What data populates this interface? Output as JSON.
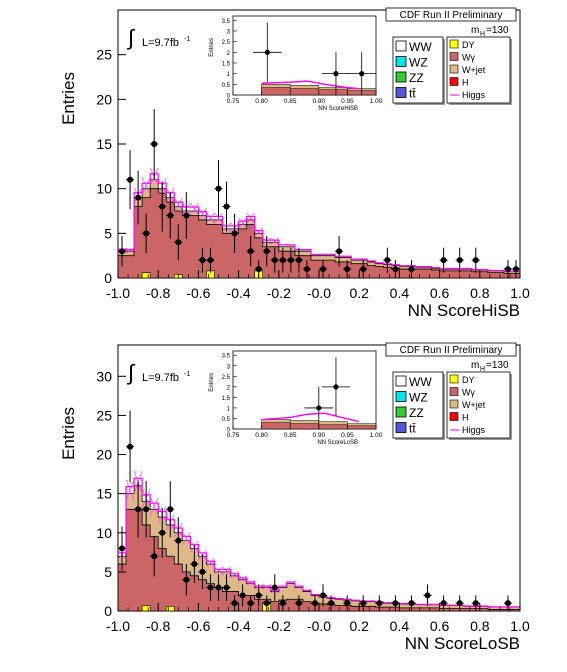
{
  "chart_data": [
    {
      "type": "histogram",
      "xlabel": "NN ScoreHiSB",
      "ylabel": "Entries",
      "xlim": [
        -1.0,
        1.0
      ],
      "ylim": [
        0,
        30
      ],
      "x_ticks": [
        "-1.0",
        "-0.8",
        "-0.6",
        "-0.4",
        "-0.2",
        "-0.0",
        "0.2",
        "0.4",
        "0.6",
        "0.8",
        "1.0"
      ],
      "y_ticks": [
        "0",
        "5",
        "10",
        "15",
        "20",
        "25"
      ],
      "y_tick_values": [
        0,
        5,
        10,
        15,
        20,
        25
      ],
      "bin_edges_start": -1.0,
      "bin_width": 0.04,
      "lumi_label": "L=9.7fb",
      "lumi_exp": "-1",
      "integral_symbol": "∫",
      "header": "CDF Run II Preliminary",
      "mass_label": "m",
      "mass_sub": "H",
      "mass_value": "=130",
      "legend_left": [
        {
          "label": "WW",
          "color": "#ffffff"
        },
        {
          "label": "WZ",
          "color": "#00e5e5"
        },
        {
          "label": "ZZ",
          "color": "#33cc33"
        },
        {
          "label": "tt̄",
          "color": "#5555dd"
        }
      ],
      "legend_right": [
        {
          "label": "DY",
          "color": "#ffff00",
          "style": "box"
        },
        {
          "label": "Wγ",
          "color": "#cc6666",
          "style": "box"
        },
        {
          "label": "W+jet",
          "color": "#deb887",
          "style": "box"
        },
        {
          "label": "H",
          "color": "#ff0000",
          "style": "box"
        },
        {
          "label": "Higgs",
          "color": "#ff00ff",
          "style": "line"
        }
      ],
      "stack_top": [
        3,
        3,
        9,
        10,
        11,
        10,
        9,
        8,
        7.5,
        7.5,
        7,
        6.5,
        6.5,
        5.5,
        5.5,
        6,
        6.5,
        5,
        4,
        4,
        3.5,
        3.5,
        3,
        3,
        2.5,
        2.5,
        2.5,
        2.3,
        2.3,
        2,
        2,
        1.8,
        1.6,
        1.5,
        1.4,
        1.3,
        1.3,
        1.2,
        1.2,
        1.1,
        1.0,
        1.0,
        1.0,
        1.0,
        0.9,
        0.9,
        0.8,
        0.8,
        0.7,
        0.7
      ],
      "wgamma": [
        2.5,
        2.5,
        8,
        9,
        10,
        9.5,
        8.5,
        7.5,
        7,
        7,
        6.5,
        6,
        6,
        5,
        5,
        5.5,
        6,
        4.5,
        3.5,
        3.5,
        3,
        3,
        2.5,
        2.5,
        2,
        2,
        2,
        1.8,
        1.8,
        1.6,
        1.6,
        1.4,
        1.3,
        1.2,
        1.1,
        1.0,
        1.0,
        1.0,
        1.0,
        0.9,
        0.8,
        0.8,
        0.8,
        0.8,
        0.7,
        0.7,
        0.6,
        0.6,
        0.5,
        0.5
      ],
      "dy": [
        0,
        0,
        0,
        0,
        0,
        0,
        0,
        0,
        0,
        0,
        0,
        0,
        0,
        0,
        0,
        0,
        0,
        0,
        0,
        0,
        0,
        0,
        0,
        0,
        0,
        0,
        0,
        0,
        0,
        0,
        0,
        0,
        0,
        0,
        0,
        0,
        0,
        0,
        0,
        0,
        0,
        0,
        0,
        0,
        0,
        0,
        0,
        0,
        0,
        0
      ],
      "data_points": [
        {
          "x": -0.98,
          "y": 3,
          "err": 1.7
        },
        {
          "x": -0.94,
          "y": 11,
          "err": 3.3
        },
        {
          "x": -0.9,
          "y": 9,
          "err": 3.0
        },
        {
          "x": -0.86,
          "y": 5,
          "err": 2.2
        },
        {
          "x": -0.82,
          "y": 15,
          "err": 3.9
        },
        {
          "x": -0.78,
          "y": 8,
          "err": 2.8
        },
        {
          "x": -0.74,
          "y": 7,
          "err": 2.6
        },
        {
          "x": -0.7,
          "y": 4,
          "err": 2.0
        },
        {
          "x": -0.66,
          "y": 7,
          "err": 2.6
        },
        {
          "x": -0.58,
          "y": 2,
          "err": 1.4
        },
        {
          "x": -0.54,
          "y": 2,
          "err": 1.4
        },
        {
          "x": -0.5,
          "y": 10,
          "err": 3.2
        },
        {
          "x": -0.46,
          "y": 8,
          "err": 2.8
        },
        {
          "x": -0.42,
          "y": 5,
          "err": 2.2
        },
        {
          "x": -0.34,
          "y": 3,
          "err": 1.7
        },
        {
          "x": -0.3,
          "y": 1,
          "err": 1.0
        },
        {
          "x": -0.26,
          "y": 3,
          "err": 1.7
        },
        {
          "x": -0.22,
          "y": 2,
          "err": 1.4
        },
        {
          "x": -0.18,
          "y": 2,
          "err": 1.4
        },
        {
          "x": -0.14,
          "y": 2,
          "err": 1.4
        },
        {
          "x": -0.1,
          "y": 2,
          "err": 1.4
        },
        {
          "x": -0.06,
          "y": 1,
          "err": 1.0
        },
        {
          "x": 0.02,
          "y": 1,
          "err": 1.0
        },
        {
          "x": 0.1,
          "y": 3,
          "err": 1.7
        },
        {
          "x": 0.14,
          "y": 1,
          "err": 1.0
        },
        {
          "x": 0.22,
          "y": 1,
          "err": 1.0
        },
        {
          "x": 0.34,
          "y": 2,
          "err": 1.4
        },
        {
          "x": 0.38,
          "y": 1,
          "err": 1.0
        },
        {
          "x": 0.46,
          "y": 1,
          "err": 1.0
        },
        {
          "x": 0.62,
          "y": 2,
          "err": 1.4
        },
        {
          "x": 0.7,
          "y": 2,
          "err": 1.4
        },
        {
          "x": 0.78,
          "y": 2,
          "err": 1.4
        },
        {
          "x": 0.94,
          "y": 1,
          "err": 1.0
        },
        {
          "x": 0.98,
          "y": 1,
          "err": 1.0
        }
      ],
      "yellow_bins": [
        {
          "x": -0.86,
          "h": 0.6
        },
        {
          "x": -0.7,
          "h": 0.4
        },
        {
          "x": -0.54,
          "h": 0.8
        },
        {
          "x": -0.3,
          "h": 0.8
        }
      ],
      "inset": {
        "xlabel": "NN ScoreHiSB",
        "ylabel": "Entries",
        "xlim": [
          0.75,
          1.0
        ],
        "ylim": [
          0,
          3.7
        ],
        "x_ticks": [
          "0.75",
          "0.80",
          "0.85",
          "0.90",
          "0.95",
          "1.00"
        ],
        "y_ticks": [
          "0",
          "0.5",
          "1",
          "1.5",
          "2",
          "2.5",
          "3",
          "3.5"
        ],
        "y_tick_values": [
          0,
          0.5,
          1,
          1.5,
          2,
          2.5,
          3,
          3.5
        ],
        "bins": [
          {
            "x0": 0.8,
            "x1": 0.85,
            "stack": 0.5,
            "wg": 0.35
          },
          {
            "x0": 0.85,
            "x1": 0.9,
            "stack": 0.45,
            "wg": 0.3
          },
          {
            "x0": 0.9,
            "x1": 0.95,
            "stack": 0.35,
            "wg": 0.25
          },
          {
            "x0": 0.95,
            "x1": 1.0,
            "stack": 0.3,
            "wg": 0.2
          }
        ],
        "higgs": [
          [
            0.8,
            0.55
          ],
          [
            0.85,
            0.6
          ],
          [
            0.88,
            0.65
          ],
          [
            0.91,
            0.5
          ],
          [
            0.95,
            0.35
          ],
          [
            0.97,
            0.3
          ]
        ],
        "data_points": [
          {
            "x": 0.81,
            "y": 2,
            "err": 1.4
          },
          {
            "x": 0.93,
            "y": 1,
            "err": 1.0
          },
          {
            "x": 0.975,
            "y": 1,
            "err": 1.0
          }
        ]
      }
    },
    {
      "type": "histogram",
      "xlabel": "NN ScoreLoSB",
      "ylabel": "Entries",
      "xlim": [
        -1.0,
        1.0
      ],
      "ylim": [
        0,
        34
      ],
      "x_ticks": [
        "-1.0",
        "-0.8",
        "-0.6",
        "-0.4",
        "-0.2",
        "-0.0",
        "0.2",
        "0.4",
        "0.6",
        "0.8",
        "1.0"
      ],
      "y_ticks": [
        "0",
        "5",
        "10",
        "15",
        "20",
        "25",
        "30"
      ],
      "y_tick_values": [
        0,
        5,
        10,
        15,
        20,
        25,
        30
      ],
      "bin_edges_start": -1.0,
      "bin_width": 0.04,
      "lumi_label": "L=9.7fb",
      "lumi_exp": "-1",
      "integral_symbol": "∫",
      "header": "CDF Run II Preliminary",
      "mass_label": "m",
      "mass_sub": "H",
      "mass_value": "=130",
      "legend_left": [
        {
          "label": "WW",
          "color": "#ffffff"
        },
        {
          "label": "WZ",
          "color": "#00e5e5"
        },
        {
          "label": "ZZ",
          "color": "#33cc33"
        },
        {
          "label": "tt̄",
          "color": "#5555dd"
        }
      ],
      "legend_right": [
        {
          "label": "DY",
          "color": "#ffff00",
          "style": "box"
        },
        {
          "label": "Wγ",
          "color": "#cc6666",
          "style": "box"
        },
        {
          "label": "W+jet",
          "color": "#deb887",
          "style": "box"
        },
        {
          "label": "H",
          "color": "#ff0000",
          "style": "box"
        },
        {
          "label": "Higgs",
          "color": "#ff00ff",
          "style": "line"
        }
      ],
      "stack_top": [
        7,
        15,
        16,
        14,
        13,
        12,
        11,
        10,
        9,
        8,
        7,
        6,
        5,
        5,
        4.5,
        4,
        3.5,
        3,
        3,
        2.5,
        3,
        3.5,
        3,
        2.5,
        2,
        1.8,
        1.6,
        1.5,
        1.4,
        1.3,
        1.2,
        1.2,
        1.1,
        1.0,
        1.0,
        0.9,
        0.9,
        0.8,
        0.8,
        0.8,
        0.7,
        0.7,
        0.7,
        0.6,
        0.6,
        0.6,
        0.5,
        0.5,
        0.5,
        0.5
      ],
      "wgamma": [
        6,
        13,
        13,
        11,
        9.5,
        8,
        7,
        6,
        5,
        4.5,
        4,
        3.5,
        3,
        2.5,
        2.5,
        2,
        2,
        1.5,
        1.5,
        1.2,
        1.4,
        1.5,
        1.5,
        1.2,
        1.0,
        0.9,
        0.8,
        0.7,
        0.7,
        0.6,
        0.6,
        0.6,
        0.5,
        0.5,
        0.5,
        0.4,
        0.4,
        0.4,
        0.4,
        0.4,
        0.3,
        0.3,
        0.3,
        0.3,
        0.3,
        0.3,
        0.2,
        0.2,
        0.2,
        0.2
      ],
      "dy": [
        0,
        0,
        0,
        0,
        0,
        0,
        0,
        0,
        0,
        0,
        0,
        0,
        0,
        0,
        0,
        0,
        0,
        0,
        0,
        0,
        0,
        0,
        0,
        0,
        0,
        0,
        0,
        0,
        0,
        0,
        0,
        0,
        0,
        0,
        0,
        0,
        0,
        0,
        0,
        0,
        0,
        0,
        0,
        0,
        0,
        0,
        0,
        0,
        0,
        0
      ],
      "data_points": [
        {
          "x": -0.98,
          "y": 8,
          "err": 2.8
        },
        {
          "x": -0.94,
          "y": 21,
          "err": 4.6
        },
        {
          "x": -0.9,
          "y": 13,
          "err": 3.6
        },
        {
          "x": -0.86,
          "y": 13,
          "err": 3.6
        },
        {
          "x": -0.82,
          "y": 7,
          "err": 2.6
        },
        {
          "x": -0.78,
          "y": 10,
          "err": 3.2
        },
        {
          "x": -0.74,
          "y": 13,
          "err": 3.6
        },
        {
          "x": -0.7,
          "y": 9,
          "err": 3.0
        },
        {
          "x": -0.66,
          "y": 4,
          "err": 2.0
        },
        {
          "x": -0.62,
          "y": 6,
          "err": 2.4
        },
        {
          "x": -0.58,
          "y": 5,
          "err": 2.2
        },
        {
          "x": -0.54,
          "y": 3,
          "err": 1.7
        },
        {
          "x": -0.5,
          "y": 3,
          "err": 1.7
        },
        {
          "x": -0.46,
          "y": 3,
          "err": 1.7
        },
        {
          "x": -0.42,
          "y": 1,
          "err": 1.0
        },
        {
          "x": -0.38,
          "y": 2,
          "err": 1.4
        },
        {
          "x": -0.34,
          "y": 1,
          "err": 1.0
        },
        {
          "x": -0.3,
          "y": 2,
          "err": 1.4
        },
        {
          "x": -0.26,
          "y": 1,
          "err": 1.0
        },
        {
          "x": -0.22,
          "y": 3,
          "err": 1.7
        },
        {
          "x": -0.18,
          "y": 1,
          "err": 1.0
        },
        {
          "x": -0.1,
          "y": 1,
          "err": 1.0
        },
        {
          "x": -0.02,
          "y": 1,
          "err": 1.0
        },
        {
          "x": 0.02,
          "y": 2,
          "err": 1.4
        },
        {
          "x": 0.06,
          "y": 1,
          "err": 1.0
        },
        {
          "x": 0.14,
          "y": 1,
          "err": 1.0
        },
        {
          "x": 0.22,
          "y": 1,
          "err": 1.0
        },
        {
          "x": 0.3,
          "y": 1,
          "err": 1.0
        },
        {
          "x": 0.38,
          "y": 1,
          "err": 1.0
        },
        {
          "x": 0.46,
          "y": 1,
          "err": 1.0
        },
        {
          "x": 0.54,
          "y": 2,
          "err": 1.4
        },
        {
          "x": 0.62,
          "y": 1,
          "err": 1.0
        },
        {
          "x": 0.7,
          "y": 1,
          "err": 1.0
        },
        {
          "x": 0.78,
          "y": 1,
          "err": 1.0
        },
        {
          "x": 0.94,
          "y": 1,
          "err": 1.0
        }
      ],
      "yellow_bins": [
        {
          "x": -0.86,
          "h": 0.7
        },
        {
          "x": -0.74,
          "h": 0.6
        },
        {
          "x": -0.26,
          "h": 1.1
        }
      ],
      "inset": {
        "xlabel": "NN ScoreLoSB",
        "ylabel": "Entries",
        "xlim": [
          0.75,
          1.0
        ],
        "ylim": [
          0,
          3.7
        ],
        "x_ticks": [
          "0.75",
          "0.80",
          "0.85",
          "0.90",
          "0.95",
          "1.00"
        ],
        "y_ticks": [
          "0",
          "0.5",
          "1",
          "1.5",
          "2",
          "2.5",
          "3",
          "3.5"
        ],
        "y_tick_values": [
          0,
          0.5,
          1,
          1.5,
          2,
          2.5,
          3,
          3.5
        ],
        "bins": [
          {
            "x0": 0.8,
            "x1": 0.85,
            "stack": 0.45,
            "wg": 0.3
          },
          {
            "x0": 0.85,
            "x1": 0.9,
            "stack": 0.4,
            "wg": 0.25
          },
          {
            "x0": 0.9,
            "x1": 0.95,
            "stack": 0.35,
            "wg": 0.2
          },
          {
            "x0": 0.95,
            "x1": 1.0,
            "stack": 0.25,
            "wg": 0.15
          }
        ],
        "higgs": [
          [
            0.8,
            0.45
          ],
          [
            0.85,
            0.55
          ],
          [
            0.88,
            0.7
          ],
          [
            0.91,
            0.75
          ],
          [
            0.94,
            0.55
          ],
          [
            0.97,
            0.35
          ]
        ],
        "data_points": [
          {
            "x": 0.9,
            "y": 1,
            "err": 1.0
          },
          {
            "x": 0.93,
            "y": 2,
            "err": 1.4
          }
        ]
      }
    }
  ]
}
